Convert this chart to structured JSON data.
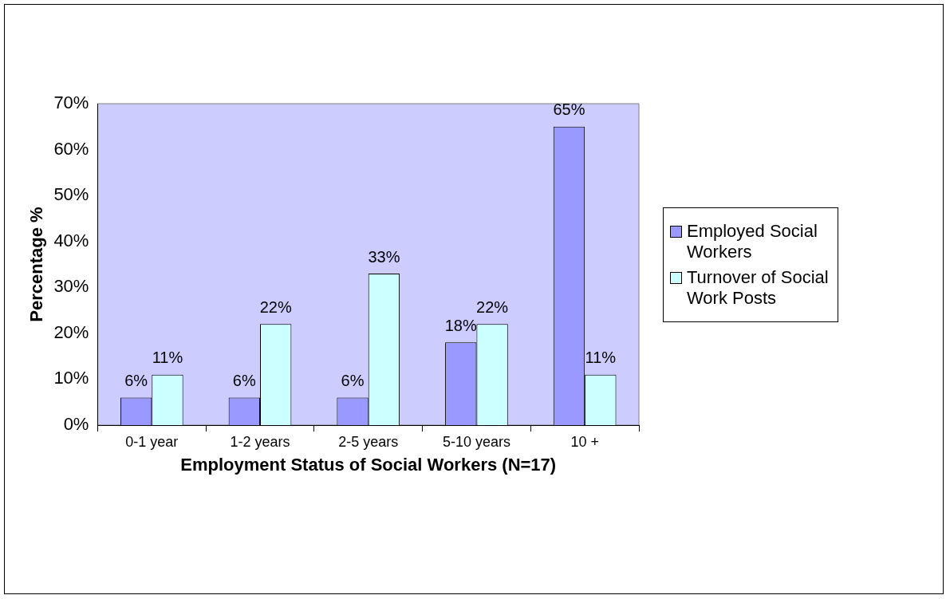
{
  "chart_data": {
    "type": "bar",
    "xlabel": "Employment Status of Social Workers (N=17)",
    "ylabel": "Percentage %",
    "categories": [
      "0-1 year",
      "1-2 years",
      "2-5 years",
      "5-10 years",
      "10 +"
    ],
    "series": [
      {
        "name": "Employed Social Workers",
        "color": "#9999ff",
        "values": [
          6,
          6,
          6,
          18,
          65
        ],
        "value_labels": [
          "6%",
          "6%",
          "6%",
          "18%",
          "65%"
        ]
      },
      {
        "name": "Turnover of Social Work Posts",
        "color": "#ccffff",
        "values": [
          11,
          22,
          33,
          22,
          11
        ],
        "value_labels": [
          "11%",
          "22%",
          "33%",
          "22%",
          "11%"
        ]
      }
    ],
    "ylim": [
      0,
      70
    ],
    "yticks": [
      {
        "value": 0,
        "label": "0%"
      },
      {
        "value": 10,
        "label": "10%"
      },
      {
        "value": 20,
        "label": "20%"
      },
      {
        "value": 30,
        "label": "30%"
      },
      {
        "value": 40,
        "label": "40%"
      },
      {
        "value": 50,
        "label": "50%"
      },
      {
        "value": 60,
        "label": "60%"
      },
      {
        "value": 70,
        "label": "70%"
      }
    ],
    "legend": "right"
  }
}
